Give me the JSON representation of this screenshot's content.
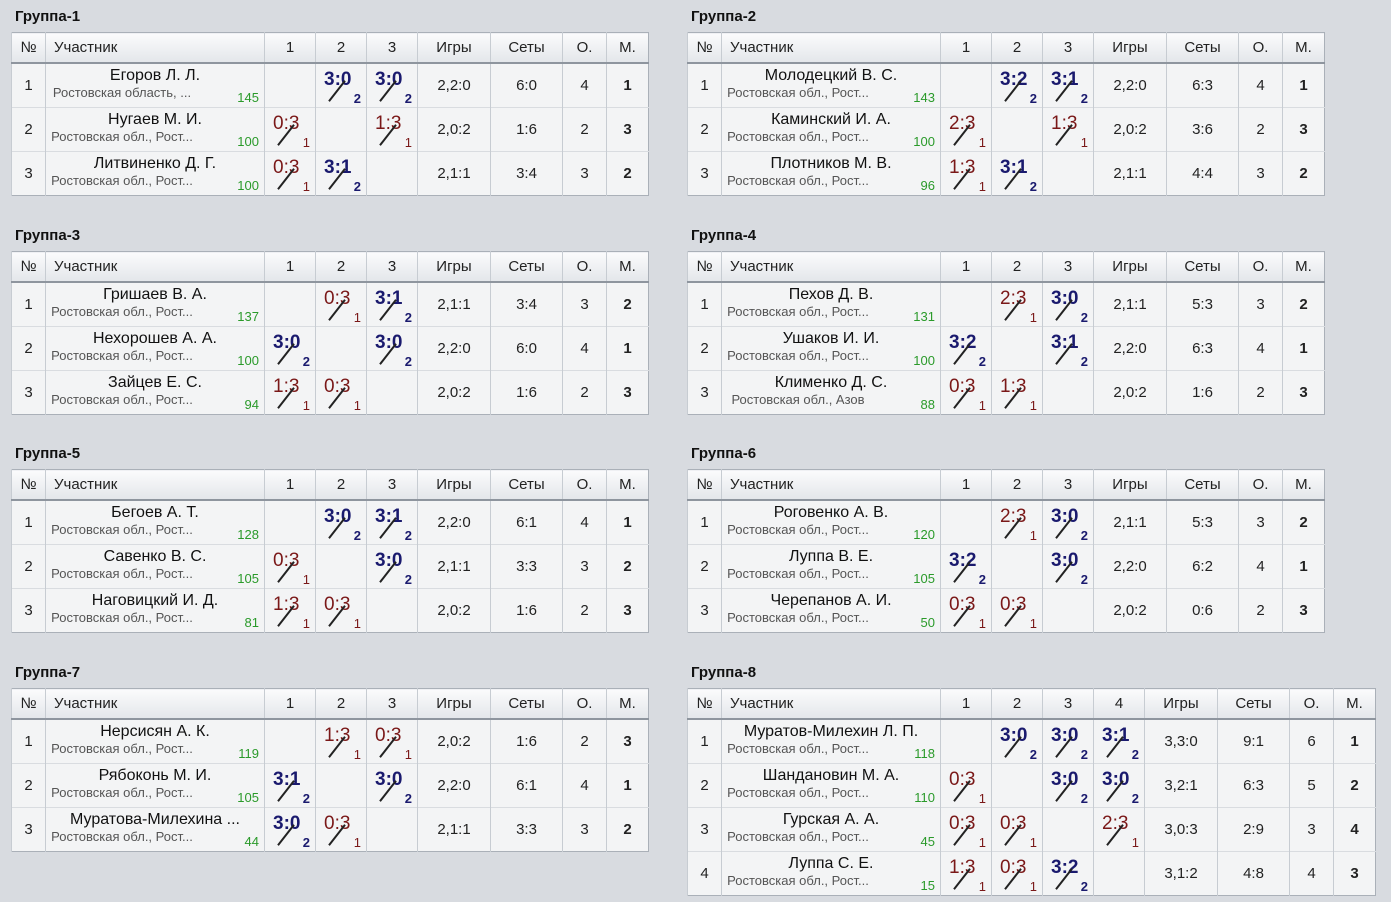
{
  "headers": {
    "num": "№",
    "participant": "Участник",
    "games": "Игры",
    "sets": "Сеты",
    "points": "О.",
    "place": "М."
  },
  "groups": [
    {
      "title": "Группа-1",
      "players": [
        {
          "num": "1",
          "name": "Егоров Л. Л.",
          "region": "Ростовская область, ...",
          "rating": "145",
          "cells": [
            null,
            {
              "s": "3:0",
              "p": "2",
              "w": true
            },
            {
              "s": "3:0",
              "p": "2",
              "w": true
            }
          ],
          "games": "2,2:0",
          "sets": "6:0",
          "points": "4",
          "place": "1"
        },
        {
          "num": "2",
          "name": "Нугаев М. И.",
          "region": "Ростовская обл., Рост...",
          "rating": "100",
          "cells": [
            {
              "s": "0:3",
              "p": "1",
              "w": false
            },
            null,
            {
              "s": "1:3",
              "p": "1",
              "w": false
            }
          ],
          "games": "2,0:2",
          "sets": "1:6",
          "points": "2",
          "place": "3"
        },
        {
          "num": "3",
          "name": "Литвиненко Д. Г.",
          "region": "Ростовская обл., Рост...",
          "rating": "100",
          "cells": [
            {
              "s": "0:3",
              "p": "1",
              "w": false
            },
            {
              "s": "3:1",
              "p": "2",
              "w": true
            },
            null
          ],
          "games": "2,1:1",
          "sets": "3:4",
          "points": "3",
          "place": "2"
        }
      ]
    },
    {
      "title": "Группа-2",
      "players": [
        {
          "num": "1",
          "name": "Молодецкий В. С.",
          "region": "Ростовская обл., Рост...",
          "rating": "143",
          "cells": [
            null,
            {
              "s": "3:2",
              "p": "2",
              "w": true
            },
            {
              "s": "3:1",
              "p": "2",
              "w": true
            }
          ],
          "games": "2,2:0",
          "sets": "6:3",
          "points": "4",
          "place": "1"
        },
        {
          "num": "2",
          "name": "Каминский И. А.",
          "region": "Ростовская обл., Рост...",
          "rating": "100",
          "cells": [
            {
              "s": "2:3",
              "p": "1",
              "w": false
            },
            null,
            {
              "s": "1:3",
              "p": "1",
              "w": false
            }
          ],
          "games": "2,0:2",
          "sets": "3:6",
          "points": "2",
          "place": "3"
        },
        {
          "num": "3",
          "name": "Плотников М. В.",
          "region": "Ростовская обл., Рост...",
          "rating": "96",
          "cells": [
            {
              "s": "1:3",
              "p": "1",
              "w": false
            },
            {
              "s": "3:1",
              "p": "2",
              "w": true
            },
            null
          ],
          "games": "2,1:1",
          "sets": "4:4",
          "points": "3",
          "place": "2"
        }
      ]
    },
    {
      "title": "Группа-3",
      "players": [
        {
          "num": "1",
          "name": "Гришаев В. А.",
          "region": "Ростовская обл., Рост...",
          "rating": "137",
          "cells": [
            null,
            {
              "s": "0:3",
              "p": "1",
              "w": false
            },
            {
              "s": "3:1",
              "p": "2",
              "w": true
            }
          ],
          "games": "2,1:1",
          "sets": "3:4",
          "points": "3",
          "place": "2"
        },
        {
          "num": "2",
          "name": "Нехорошев А. А.",
          "region": "Ростовская обл., Рост...",
          "rating": "100",
          "cells": [
            {
              "s": "3:0",
              "p": "2",
              "w": true
            },
            null,
            {
              "s": "3:0",
              "p": "2",
              "w": true
            }
          ],
          "games": "2,2:0",
          "sets": "6:0",
          "points": "4",
          "place": "1"
        },
        {
          "num": "3",
          "name": "Зайцев Е. С.",
          "region": "Ростовская обл., Рост...",
          "rating": "94",
          "cells": [
            {
              "s": "1:3",
              "p": "1",
              "w": false
            },
            {
              "s": "0:3",
              "p": "1",
              "w": false
            },
            null
          ],
          "games": "2,0:2",
          "sets": "1:6",
          "points": "2",
          "place": "3"
        }
      ]
    },
    {
      "title": "Группа-4",
      "players": [
        {
          "num": "1",
          "name": "Пехов Д. В.",
          "region": "Ростовская обл., Рост...",
          "rating": "131",
          "cells": [
            null,
            {
              "s": "2:3",
              "p": "1",
              "w": false
            },
            {
              "s": "3:0",
              "p": "2",
              "w": true
            }
          ],
          "games": "2,1:1",
          "sets": "5:3",
          "points": "3",
          "place": "2"
        },
        {
          "num": "2",
          "name": "Ушаков И. И.",
          "region": "Ростовская обл., Рост...",
          "rating": "100",
          "cells": [
            {
              "s": "3:2",
              "p": "2",
              "w": true
            },
            null,
            {
              "s": "3:1",
              "p": "2",
              "w": true
            }
          ],
          "games": "2,2:0",
          "sets": "6:3",
          "points": "4",
          "place": "1"
        },
        {
          "num": "3",
          "name": "Клименко Д. С.",
          "region": "Ростовская обл., Азов",
          "rating": "88",
          "cells": [
            {
              "s": "0:3",
              "p": "1",
              "w": false
            },
            {
              "s": "1:3",
              "p": "1",
              "w": false
            },
            null
          ],
          "games": "2,0:2",
          "sets": "1:6",
          "points": "2",
          "place": "3"
        }
      ]
    },
    {
      "title": "Группа-5",
      "players": [
        {
          "num": "1",
          "name": "Бегоев А. Т.",
          "region": "Ростовская обл., Рост...",
          "rating": "128",
          "cells": [
            null,
            {
              "s": "3:0",
              "p": "2",
              "w": true
            },
            {
              "s": "3:1",
              "p": "2",
              "w": true
            }
          ],
          "games": "2,2:0",
          "sets": "6:1",
          "points": "4",
          "place": "1"
        },
        {
          "num": "2",
          "name": "Савенко В. С.",
          "region": "Ростовская обл., Рост...",
          "rating": "105",
          "cells": [
            {
              "s": "0:3",
              "p": "1",
              "w": false
            },
            null,
            {
              "s": "3:0",
              "p": "2",
              "w": true
            }
          ],
          "games": "2,1:1",
          "sets": "3:3",
          "points": "3",
          "place": "2"
        },
        {
          "num": "3",
          "name": "Наговицкий И. Д.",
          "region": "Ростовская обл., Рост...",
          "rating": "81",
          "cells": [
            {
              "s": "1:3",
              "p": "1",
              "w": false
            },
            {
              "s": "0:3",
              "p": "1",
              "w": false
            },
            null
          ],
          "games": "2,0:2",
          "sets": "1:6",
          "points": "2",
          "place": "3"
        }
      ]
    },
    {
      "title": "Группа-6",
      "players": [
        {
          "num": "1",
          "name": "Роговенко А. В.",
          "region": "Ростовская обл., Рост...",
          "rating": "120",
          "cells": [
            null,
            {
              "s": "2:3",
              "p": "1",
              "w": false
            },
            {
              "s": "3:0",
              "p": "2",
              "w": true
            }
          ],
          "games": "2,1:1",
          "sets": "5:3",
          "points": "3",
          "place": "2"
        },
        {
          "num": "2",
          "name": "Луппа В. Е.",
          "region": "Ростовская обл., Рост...",
          "rating": "105",
          "cells": [
            {
              "s": "3:2",
              "p": "2",
              "w": true
            },
            null,
            {
              "s": "3:0",
              "p": "2",
              "w": true
            }
          ],
          "games": "2,2:0",
          "sets": "6:2",
          "points": "4",
          "place": "1"
        },
        {
          "num": "3",
          "name": "Черепанов А. И.",
          "region": "Ростовская обл., Рост...",
          "rating": "50",
          "cells": [
            {
              "s": "0:3",
              "p": "1",
              "w": false
            },
            {
              "s": "0:3",
              "p": "1",
              "w": false
            },
            null
          ],
          "games": "2,0:2",
          "sets": "0:6",
          "points": "2",
          "place": "3"
        }
      ]
    },
    {
      "title": "Группа-7",
      "players": [
        {
          "num": "1",
          "name": "Нерсисян А. К.",
          "region": "Ростовская обл., Рост...",
          "rating": "119",
          "cells": [
            null,
            {
              "s": "1:3",
              "p": "1",
              "w": false
            },
            {
              "s": "0:3",
              "p": "1",
              "w": false
            }
          ],
          "games": "2,0:2",
          "sets": "1:6",
          "points": "2",
          "place": "3"
        },
        {
          "num": "2",
          "name": "Рябоконь М. И.",
          "region": "Ростовская обл., Рост...",
          "rating": "105",
          "cells": [
            {
              "s": "3:1",
              "p": "2",
              "w": true
            },
            null,
            {
              "s": "3:0",
              "p": "2",
              "w": true
            }
          ],
          "games": "2,2:0",
          "sets": "6:1",
          "points": "4",
          "place": "1"
        },
        {
          "num": "3",
          "name": "Муратова-Милехина ...",
          "region": "Ростовская обл., Рост...",
          "rating": "44",
          "cells": [
            {
              "s": "3:0",
              "p": "2",
              "w": true
            },
            {
              "s": "0:3",
              "p": "1",
              "w": false
            },
            null
          ],
          "games": "2,1:1",
          "sets": "3:3",
          "points": "3",
          "place": "2"
        }
      ]
    },
    {
      "title": "Группа-8",
      "players": [
        {
          "num": "1",
          "name": "Муратов-Милехин Л. П.",
          "region": "Ростовская обл., Рост...",
          "rating": "118",
          "cells": [
            null,
            {
              "s": "3:0",
              "p": "2",
              "w": true
            },
            {
              "s": "3:0",
              "p": "2",
              "w": true
            },
            {
              "s": "3:1",
              "p": "2",
              "w": true
            }
          ],
          "games": "3,3:0",
          "sets": "9:1",
          "points": "6",
          "place": "1"
        },
        {
          "num": "2",
          "name": "Шандановин М. А.",
          "region": "Ростовская обл., Рост...",
          "rating": "110",
          "cells": [
            {
              "s": "0:3",
              "p": "1",
              "w": false
            },
            null,
            {
              "s": "3:0",
              "p": "2",
              "w": true
            },
            {
              "s": "3:0",
              "p": "2",
              "w": true
            }
          ],
          "games": "3,2:1",
          "sets": "6:3",
          "points": "5",
          "place": "2"
        },
        {
          "num": "3",
          "name": "Гурская А. А.",
          "region": "Ростовская обл., Рост...",
          "rating": "45",
          "cells": [
            {
              "s": "0:3",
              "p": "1",
              "w": false
            },
            {
              "s": "0:3",
              "p": "1",
              "w": false
            },
            null,
            {
              "s": "2:3",
              "p": "1",
              "w": false
            }
          ],
          "games": "3,0:3",
          "sets": "2:9",
          "points": "3",
          "place": "4"
        },
        {
          "num": "4",
          "name": "Луппа С. Е.",
          "region": "Ростовская обл., Рост...",
          "rating": "15",
          "cells": [
            {
              "s": "1:3",
              "p": "1",
              "w": false
            },
            {
              "s": "0:3",
              "p": "1",
              "w": false
            },
            {
              "s": "3:2",
              "p": "2",
              "w": true
            },
            null
          ],
          "games": "3,1:2",
          "sets": "4:8",
          "points": "4",
          "place": "3"
        }
      ]
    }
  ]
}
